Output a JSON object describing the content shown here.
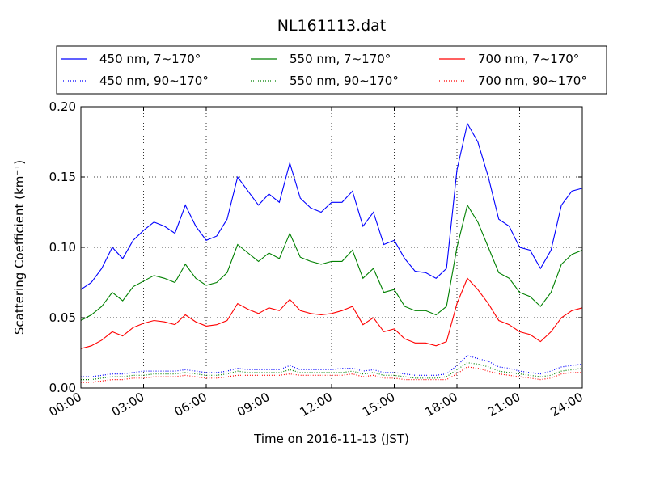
{
  "chart_data": {
    "type": "line",
    "title": "NL161113.dat",
    "xlabel": "Time on 2016-11-13 (JST)",
    "ylabel": "Scattering Coefficient (km⁻¹)",
    "x_unit": "hours",
    "xlim": [
      0,
      24
    ],
    "ylim": [
      0,
      0.2
    ],
    "x_ticks": [
      0,
      3,
      6,
      9,
      12,
      15,
      18,
      21,
      24
    ],
    "x_tick_labels": [
      "00:00",
      "03:00",
      "06:00",
      "09:00",
      "12:00",
      "15:00",
      "18:00",
      "21:00",
      "24:00"
    ],
    "y_ticks": [
      0,
      0.05,
      0.1,
      0.15,
      0.2
    ],
    "y_tick_labels": [
      "0.00",
      "0.05",
      "0.10",
      "0.15",
      "0.20"
    ],
    "grid": true,
    "legend_position": "top (above plot)",
    "x": [
      0,
      0.5,
      1,
      1.5,
      2,
      2.5,
      3,
      3.5,
      4,
      4.5,
      5,
      5.5,
      6,
      6.5,
      7,
      7.5,
      8,
      8.5,
      9,
      9.5,
      10,
      10.5,
      11,
      11.5,
      12,
      12.5,
      13,
      13.5,
      14,
      14.5,
      15,
      15.5,
      16,
      16.5,
      17,
      17.5,
      18,
      18.5,
      19,
      19.5,
      20,
      20.5,
      21,
      21.5,
      22,
      22.5,
      23,
      23.5,
      24
    ],
    "series": [
      {
        "name": "450 nm, 7∼170°",
        "color": "#0000ff",
        "style": "solid",
        "values": [
          0.07,
          0.075,
          0.085,
          0.1,
          0.092,
          0.105,
          0.112,
          0.118,
          0.115,
          0.11,
          0.13,
          0.115,
          0.105,
          0.108,
          0.12,
          0.15,
          0.14,
          0.13,
          0.138,
          0.132,
          0.16,
          0.135,
          0.128,
          0.125,
          0.132,
          0.132,
          0.14,
          0.115,
          0.125,
          0.102,
          0.105,
          0.092,
          0.083,
          0.082,
          0.078,
          0.085,
          0.155,
          0.188,
          0.175,
          0.15,
          0.12,
          0.115,
          0.1,
          0.098,
          0.085,
          0.098,
          0.13,
          0.14,
          0.142
        ]
      },
      {
        "name": "450 nm, 90∼170°",
        "color": "#0000ff",
        "style": "dotted",
        "values": [
          0.008,
          0.008,
          0.009,
          0.01,
          0.01,
          0.011,
          0.012,
          0.012,
          0.012,
          0.012,
          0.013,
          0.012,
          0.011,
          0.011,
          0.012,
          0.014,
          0.013,
          0.013,
          0.013,
          0.013,
          0.016,
          0.013,
          0.013,
          0.013,
          0.013,
          0.014,
          0.014,
          0.012,
          0.013,
          0.011,
          0.011,
          0.01,
          0.009,
          0.009,
          0.009,
          0.01,
          0.016,
          0.023,
          0.021,
          0.019,
          0.015,
          0.014,
          0.012,
          0.011,
          0.01,
          0.012,
          0.015,
          0.016,
          0.017
        ]
      },
      {
        "name": "550 nm, 7∼170°",
        "color": "#008000",
        "style": "solid",
        "values": [
          0.048,
          0.052,
          0.058,
          0.068,
          0.062,
          0.072,
          0.076,
          0.08,
          0.078,
          0.075,
          0.088,
          0.078,
          0.073,
          0.075,
          0.082,
          0.102,
          0.096,
          0.09,
          0.096,
          0.092,
          0.11,
          0.093,
          0.09,
          0.088,
          0.09,
          0.09,
          0.098,
          0.078,
          0.085,
          0.068,
          0.07,
          0.058,
          0.055,
          0.055,
          0.052,
          0.058,
          0.1,
          0.13,
          0.118,
          0.1,
          0.082,
          0.078,
          0.068,
          0.065,
          0.058,
          0.068,
          0.088,
          0.095,
          0.098
        ]
      },
      {
        "name": "550 nm, 90∼170°",
        "color": "#008000",
        "style": "dotted",
        "values": [
          0.006,
          0.006,
          0.007,
          0.008,
          0.008,
          0.009,
          0.009,
          0.01,
          0.01,
          0.01,
          0.011,
          0.01,
          0.009,
          0.009,
          0.01,
          0.012,
          0.011,
          0.011,
          0.011,
          0.011,
          0.013,
          0.011,
          0.011,
          0.011,
          0.011,
          0.011,
          0.012,
          0.01,
          0.011,
          0.009,
          0.009,
          0.008,
          0.007,
          0.007,
          0.007,
          0.008,
          0.013,
          0.018,
          0.017,
          0.015,
          0.012,
          0.011,
          0.01,
          0.009,
          0.008,
          0.009,
          0.012,
          0.013,
          0.014
        ]
      },
      {
        "name": "700 nm, 7∼170°",
        "color": "#ff0000",
        "style": "solid",
        "values": [
          0.028,
          0.03,
          0.034,
          0.04,
          0.037,
          0.043,
          0.046,
          0.048,
          0.047,
          0.045,
          0.052,
          0.047,
          0.044,
          0.045,
          0.048,
          0.06,
          0.056,
          0.053,
          0.057,
          0.055,
          0.063,
          0.055,
          0.053,
          0.052,
          0.053,
          0.055,
          0.058,
          0.045,
          0.05,
          0.04,
          0.042,
          0.035,
          0.032,
          0.032,
          0.03,
          0.033,
          0.06,
          0.078,
          0.07,
          0.06,
          0.048,
          0.045,
          0.04,
          0.038,
          0.033,
          0.04,
          0.05,
          0.055,
          0.057
        ]
      },
      {
        "name": "700 nm, 90∼170°",
        "color": "#ff0000",
        "style": "dotted",
        "values": [
          0.004,
          0.004,
          0.005,
          0.006,
          0.006,
          0.007,
          0.007,
          0.008,
          0.008,
          0.008,
          0.009,
          0.008,
          0.007,
          0.007,
          0.008,
          0.009,
          0.009,
          0.009,
          0.009,
          0.009,
          0.01,
          0.009,
          0.009,
          0.009,
          0.009,
          0.009,
          0.01,
          0.008,
          0.009,
          0.007,
          0.007,
          0.006,
          0.006,
          0.006,
          0.006,
          0.006,
          0.01,
          0.015,
          0.014,
          0.012,
          0.01,
          0.009,
          0.008,
          0.007,
          0.006,
          0.007,
          0.01,
          0.011,
          0.011
        ]
      }
    ]
  }
}
